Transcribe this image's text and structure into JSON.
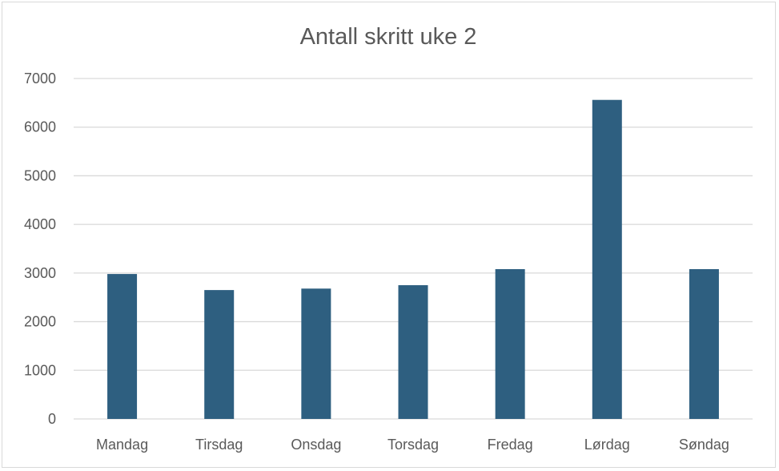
{
  "chart_data": {
    "type": "bar",
    "title": "Antall skritt uke 2",
    "categories": [
      "Mandag",
      "Tirsdag",
      "Onsdag",
      "Torsdag",
      "Fredag",
      "Lørdag",
      "Søndag"
    ],
    "values": [
      2980,
      2650,
      2680,
      2750,
      3080,
      6560,
      3080
    ],
    "ylim": [
      0,
      7000
    ],
    "yticks": [
      "0",
      "1000",
      "2000",
      "3000",
      "4000",
      "5000",
      "6000",
      "7000"
    ],
    "xlabel": "",
    "ylabel": "",
    "grid": true,
    "bar_color": "#2e5f80",
    "legend": "none"
  }
}
